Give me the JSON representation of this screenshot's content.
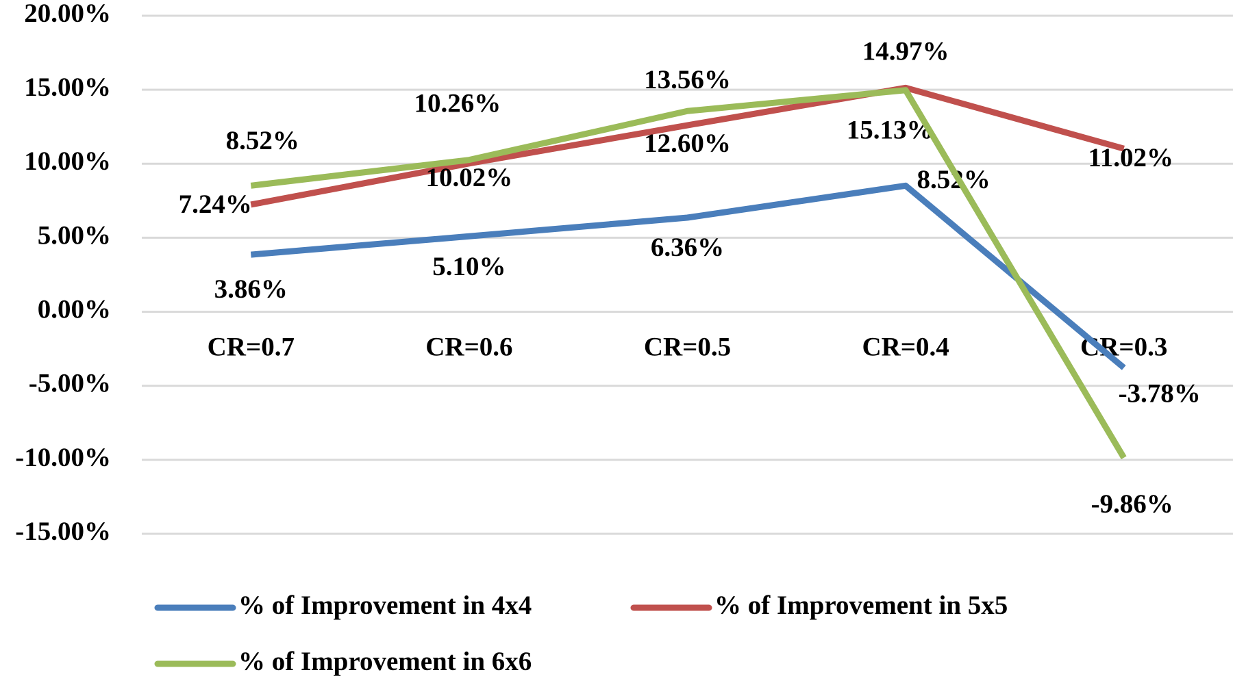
{
  "chart_data": {
    "type": "line",
    "categories": [
      "CR=0.7",
      "CR=0.6",
      "CR=0.5",
      "CR=0.4",
      "CR=0.3"
    ],
    "series": [
      {
        "name": "% of Improvement in 4x4",
        "color": "#4a7ebb",
        "values": [
          3.86,
          5.1,
          6.36,
          8.52,
          -3.78
        ],
        "value_labels": [
          "3.86%",
          "5.10%",
          "6.36%",
          "8.52%",
          "-3.78%"
        ]
      },
      {
        "name": "% of Improvement in 5x5",
        "color": "#c0504d",
        "values": [
          7.24,
          10.02,
          12.6,
          15.13,
          11.02
        ],
        "value_labels": [
          "7.24%",
          "10.02%",
          "12.60%",
          "15.13%",
          "11.02%"
        ]
      },
      {
        "name": "% of Improvement in 6x6",
        "color": "#9bbb59",
        "values": [
          8.52,
          10.26,
          13.56,
          14.97,
          -9.86
        ],
        "value_labels": [
          "8.52%",
          "10.26%",
          "13.56%",
          "14.97%",
          "-9.86%"
        ]
      }
    ],
    "ylim": [
      -15,
      20
    ],
    "yticks": [
      {
        "value": -15,
        "label": "-15.00%"
      },
      {
        "value": -10,
        "label": "-10.00%"
      },
      {
        "value": -5,
        "label": "-5.00%"
      },
      {
        "value": 0,
        "label": "0.00%"
      },
      {
        "value": 5,
        "label": "5.00%"
      },
      {
        "value": 10,
        "label": "10.00%"
      },
      {
        "value": 15,
        "label": "15.00%"
      },
      {
        "value": 20,
        "label": "20.00%"
      }
    ],
    "grid": true
  }
}
